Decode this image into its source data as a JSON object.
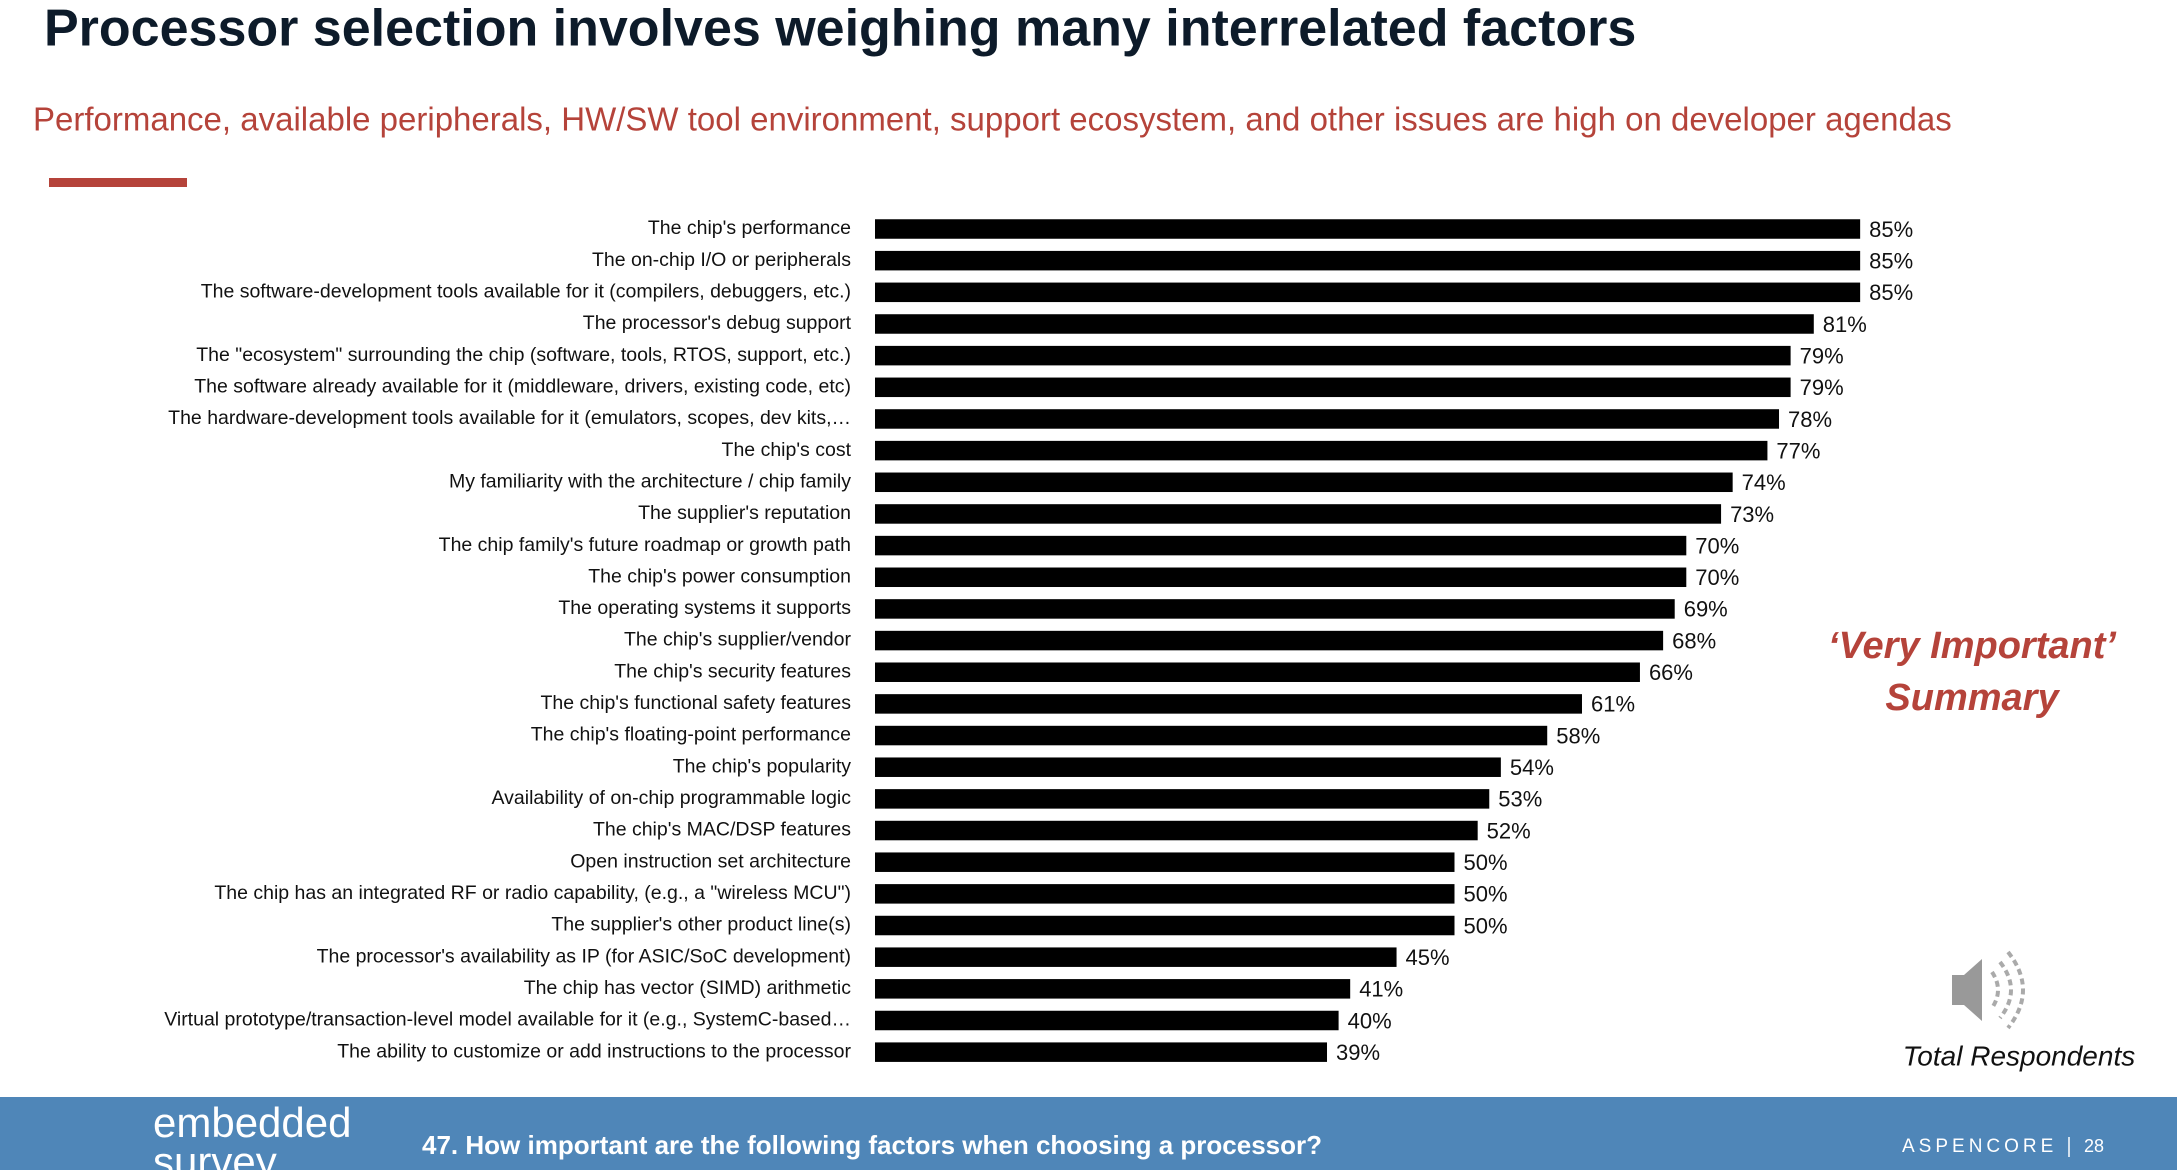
{
  "header": {
    "title": "Processor selection involves weighing many interrelated factors",
    "subtitle": "Performance, available peripherals, HW/SW tool environment, support ecosystem, and other issues are high on developer agendas"
  },
  "chart_data": {
    "type": "hbar",
    "color": "#000000",
    "categories": [
      "The chip's performance",
      "The on-chip I/O or peripherals",
      "The software-development tools available for it (compilers, debuggers, etc.)",
      "The processor's debug support",
      "The \"ecosystem\" surrounding the chip (software, tools, RTOS, support, etc.)",
      "The software already available for it (middleware, drivers, existing code, etc)",
      "The hardware-development tools available for it (emulators, scopes, dev kits,…",
      "The chip's cost",
      "My familiarity with the architecture / chip family",
      "The supplier's reputation",
      "The chip family's future roadmap or growth path",
      "The chip's power consumption",
      "The operating systems it supports",
      "The chip's supplier/vendor",
      "The chip's security features",
      "The chip's functional safety features",
      "The chip's floating-point performance",
      "The chip's popularity",
      "Availability of on-chip programmable logic",
      "The chip's MAC/DSP features",
      "Open instruction set architecture",
      "The chip has an integrated RF or radio capability, (e.g., a \"wireless MCU\")",
      "The supplier's other product line(s)",
      "The processor's availability as IP (for ASIC/SoC development)",
      "The chip has vector (SIMD) arithmetic",
      "Virtual prototype/transaction-level model available for it (e.g., SystemC-based…",
      "The ability to customize or add instructions to the processor"
    ],
    "values": [
      85,
      85,
      85,
      81,
      79,
      79,
      78,
      77,
      74,
      73,
      70,
      70,
      69,
      68,
      66,
      61,
      58,
      54,
      53,
      52,
      50,
      50,
      50,
      45,
      41,
      40,
      39
    ],
    "value_labels": [
      "85%",
      "85%",
      "85%",
      "81%",
      "79%",
      "79%",
      "78%",
      "77%",
      "74%",
      "73%",
      "70%",
      "70%",
      "69%",
      "68%",
      "66%",
      "61%",
      "58%",
      "54%",
      "53%",
      "52%",
      "50%",
      "50%",
      "50%",
      "45%",
      "41%",
      "40%",
      "39%"
    ],
    "annotations": [
      "‘Very Important’",
      "Summary",
      "Total Respondents"
    ]
  },
  "footer": {
    "logo": [
      "embedded",
      "survey"
    ],
    "question": "47. How important are the following factors when choosing a processor?",
    "brand": "ASPENCORE",
    "page": 28
  }
}
